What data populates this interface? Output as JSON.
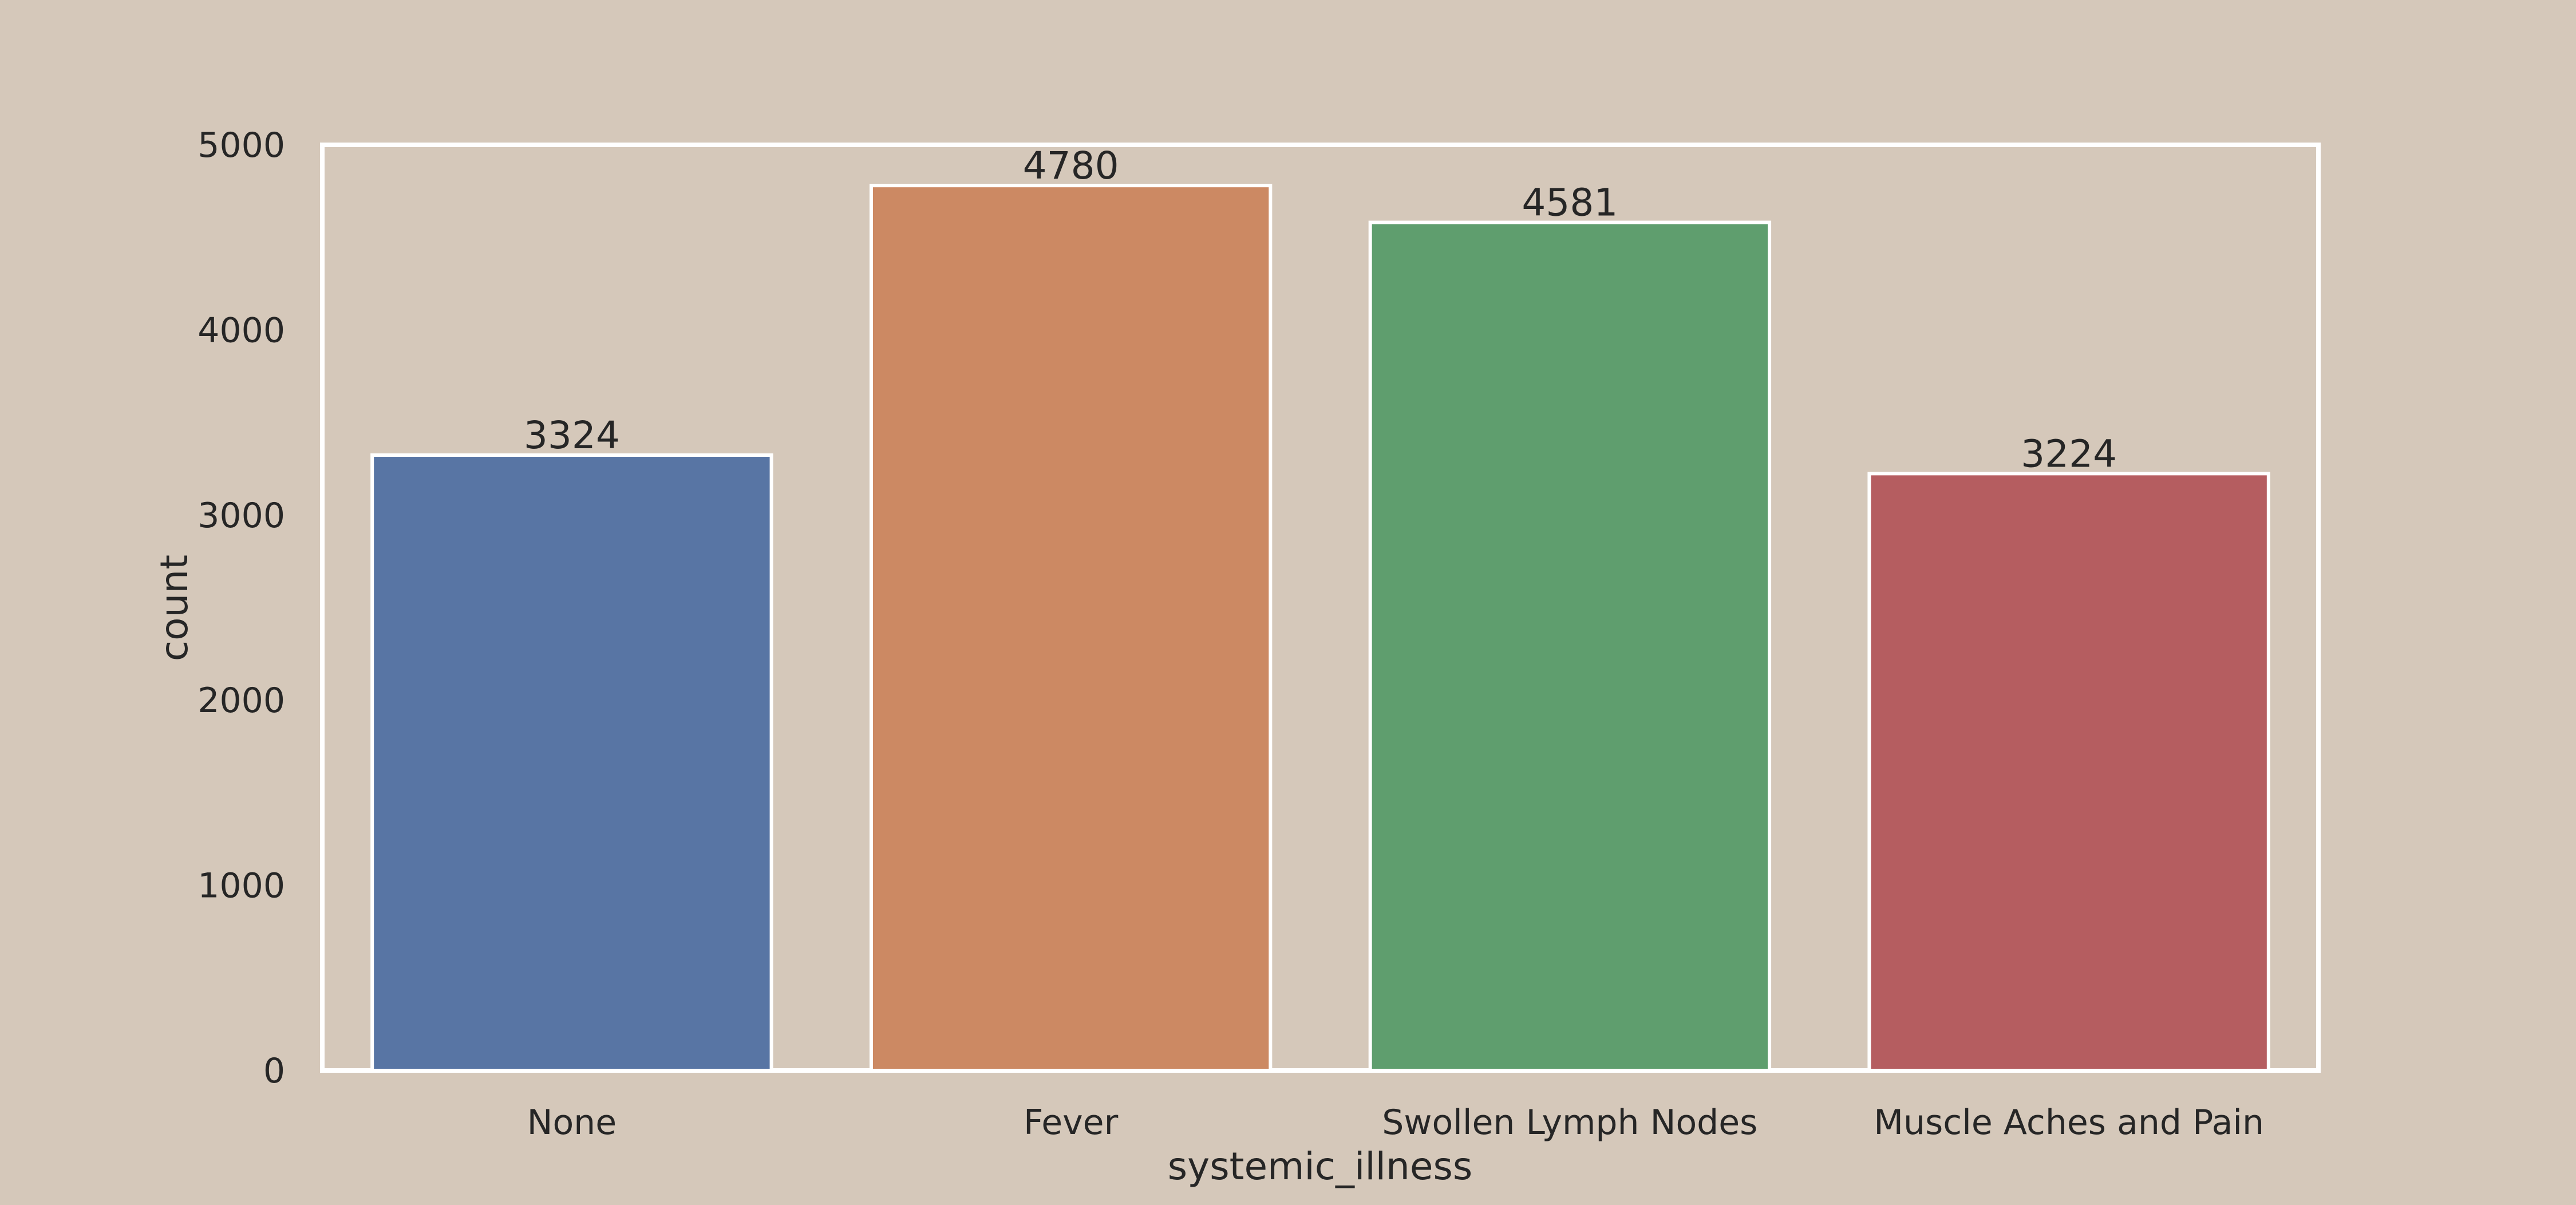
{
  "chart_data": {
    "type": "bar",
    "title": "",
    "xlabel": "systemic_illness",
    "ylabel": "count",
    "categories": [
      "None",
      "Fever",
      "Swollen Lymph Nodes",
      "Muscle Aches and Pain"
    ],
    "values": [
      3324,
      4780,
      4581,
      3224
    ],
    "data_labels": [
      "3324",
      "4780",
      "4581",
      "3224"
    ],
    "ylim": [
      0,
      5000
    ],
    "yticks": [
      0,
      1000,
      2000,
      3000,
      4000,
      5000
    ],
    "ytick_labels": [
      "0",
      "1000",
      "2000",
      "3000",
      "4000",
      "5000"
    ],
    "grid": false,
    "legend": "none",
    "colors": {
      "background": "#D5C8BA",
      "bars": [
        "#5875A4",
        "#CC8963",
        "#5F9E6E",
        "#B55D60"
      ],
      "bar_edge": "#FFFFFF",
      "frame": "#FFFFFF",
      "text": "#262626"
    }
  }
}
